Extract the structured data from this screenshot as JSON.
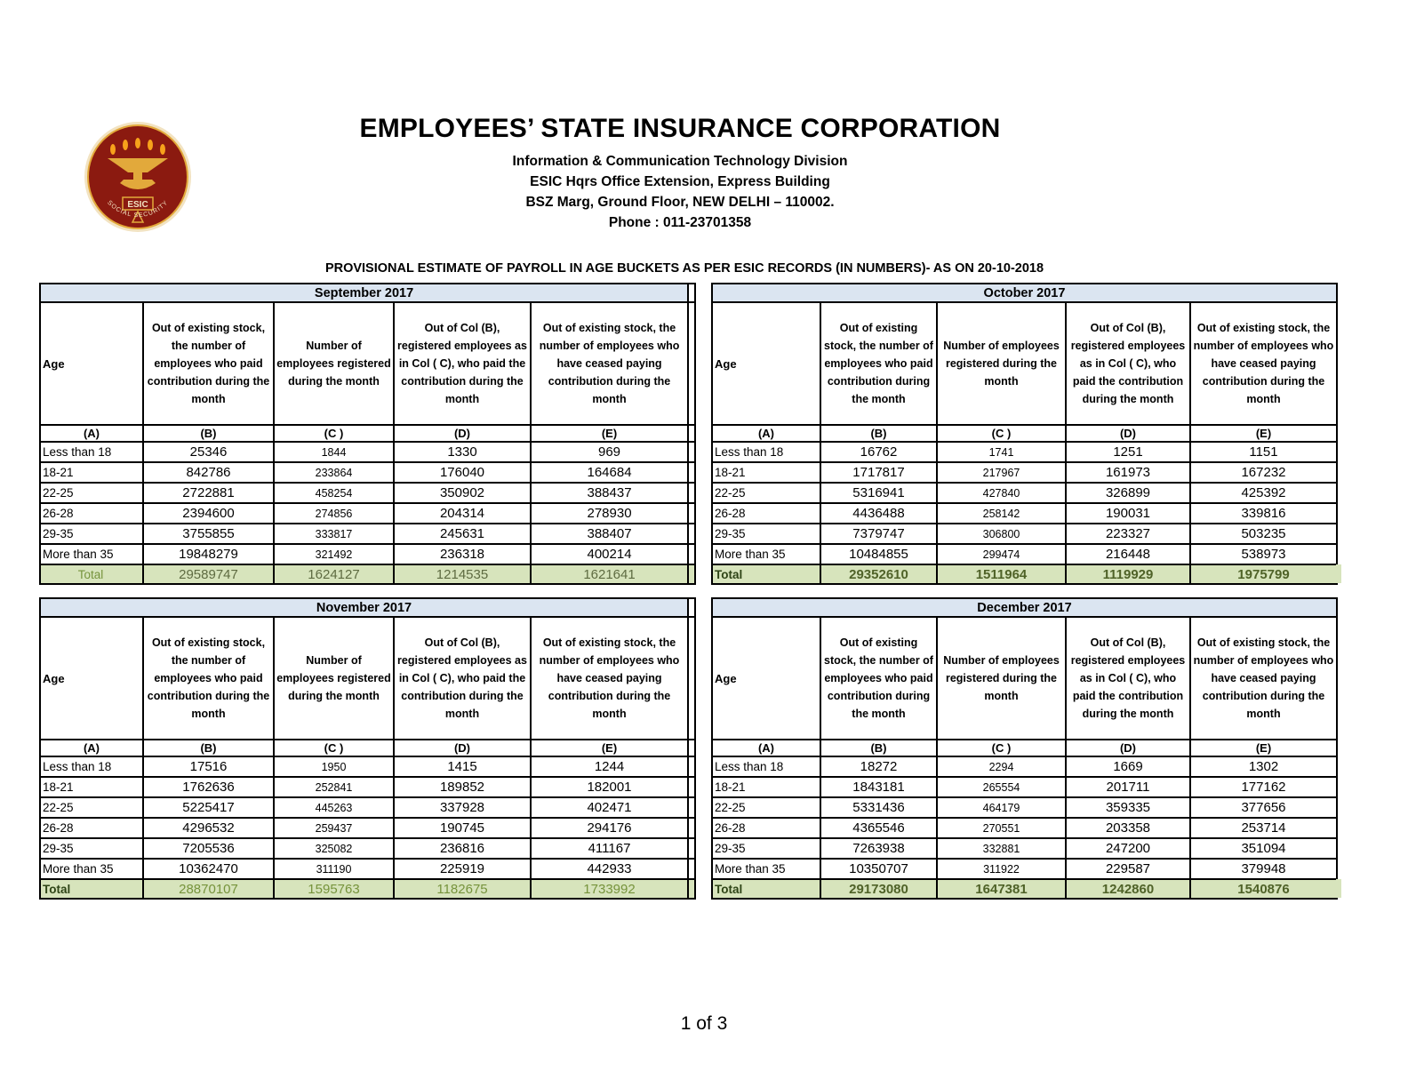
{
  "logo": {
    "acronym": "ESIC",
    "ring_text": "SOCIAL SECURITY",
    "colors": {
      "maroon": "#8B1A10",
      "gold": "#E2A93B",
      "cream": "#F2E3C2"
    }
  },
  "header": {
    "title": "EMPLOYEES’ STATE INSURANCE CORPORATION",
    "address_lines": [
      "Information & Communication Technology Division",
      "ESIC Hqrs Office Extension, Express Building",
      "BSZ Marg, Ground Floor, NEW DELHI – 110002.",
      "Phone : 011-23701358"
    ],
    "report_title": "PROVISIONAL ESTIMATE OF PAYROLL IN AGE BUCKETS AS PER ESIC RECORDS (IN NUMBERS)- AS ON 20-10-2018"
  },
  "table_columns": {
    "age_header": "Age",
    "col_headers": [
      "Out of existing stock, the number of employees who paid contribution during the month",
      "Number of employees registered during the month",
      "Out of Col (B), registered employees as in Col ( C), who paid the contribution during the month",
      "Out of existing stock, the number of employees who have ceased paying contribution during the month"
    ],
    "col_letters": [
      "(A)",
      "(B)",
      "(C )",
      "(D)",
      "(E)"
    ]
  },
  "colors": {
    "band_blue": "#DBE5F1",
    "total_green": "#D7E4BC",
    "total_text_dark_green": "#4F6228",
    "total_text_olive": "#76933C"
  },
  "tables": [
    {
      "month": "September 2017",
      "variant": "muted",
      "rows": [
        [
          "Less than 18",
          "25346",
          "1844",
          "1330",
          "969"
        ],
        [
          "18-21",
          "842786",
          "233864",
          "176040",
          "164684"
        ],
        [
          "22-25",
          "2722881",
          "458254",
          "350902",
          "388437"
        ],
        [
          "26-28",
          "2394600",
          "274856",
          "204314",
          "278930"
        ],
        [
          "29-35",
          "3755855",
          "333817",
          "245631",
          "388407"
        ],
        [
          "More than 35",
          "19848279",
          "321492",
          "236318",
          "400214"
        ]
      ],
      "total": [
        "Total",
        "29589747",
        "1624127",
        "1214535",
        "1621641"
      ]
    },
    {
      "month": "October 2017",
      "variant": "bold",
      "rows": [
        [
          "Less than 18",
          "16762",
          "1741",
          "1251",
          "1151"
        ],
        [
          "18-21",
          "1717817",
          "217967",
          "161973",
          "167232"
        ],
        [
          "22-25",
          "5316941",
          "427840",
          "326899",
          "425392"
        ],
        [
          "26-28",
          "4436488",
          "258142",
          "190031",
          "339816"
        ],
        [
          "29-35",
          "7379747",
          "306800",
          "223327",
          "503235"
        ],
        [
          "More than 35",
          "10484855",
          "299474",
          "216448",
          "538973"
        ]
      ],
      "total": [
        "Total",
        "29352610",
        "1511964",
        "1119929",
        "1975799"
      ]
    },
    {
      "month": "November 2017",
      "variant": "semi",
      "rows": [
        [
          "Less than 18",
          "17516",
          "1950",
          "1415",
          "1244"
        ],
        [
          "18-21",
          "1762636",
          "252841",
          "189852",
          "182001"
        ],
        [
          "22-25",
          "5225417",
          "445263",
          "337928",
          "402471"
        ],
        [
          "26-28",
          "4296532",
          "259437",
          "190745",
          "294176"
        ],
        [
          "29-35",
          "7205536",
          "325082",
          "236816",
          "411167"
        ],
        [
          "More than 35",
          "10362470",
          "311190",
          "225919",
          "442933"
        ]
      ],
      "total": [
        "Total",
        "28870107",
        "1595763",
        "1182675",
        "1733992"
      ]
    },
    {
      "month": "December 2017",
      "variant": "bold",
      "rows": [
        [
          "Less than 18",
          "18272",
          "2294",
          "1669",
          "1302"
        ],
        [
          "18-21",
          "1843181",
          "265554",
          "201711",
          "177162"
        ],
        [
          "22-25",
          "5331436",
          "464179",
          "359335",
          "377656"
        ],
        [
          "26-28",
          "4365546",
          "270551",
          "203358",
          "253714"
        ],
        [
          "29-35",
          "7263938",
          "332881",
          "247200",
          "351094"
        ],
        [
          "More than 35",
          "10350707",
          "311922",
          "229587",
          "379948"
        ]
      ],
      "total": [
        "Total",
        "29173080",
        "1647381",
        "1242860",
        "1540876"
      ]
    }
  ],
  "footer": {
    "page_label": "1 of 3"
  }
}
